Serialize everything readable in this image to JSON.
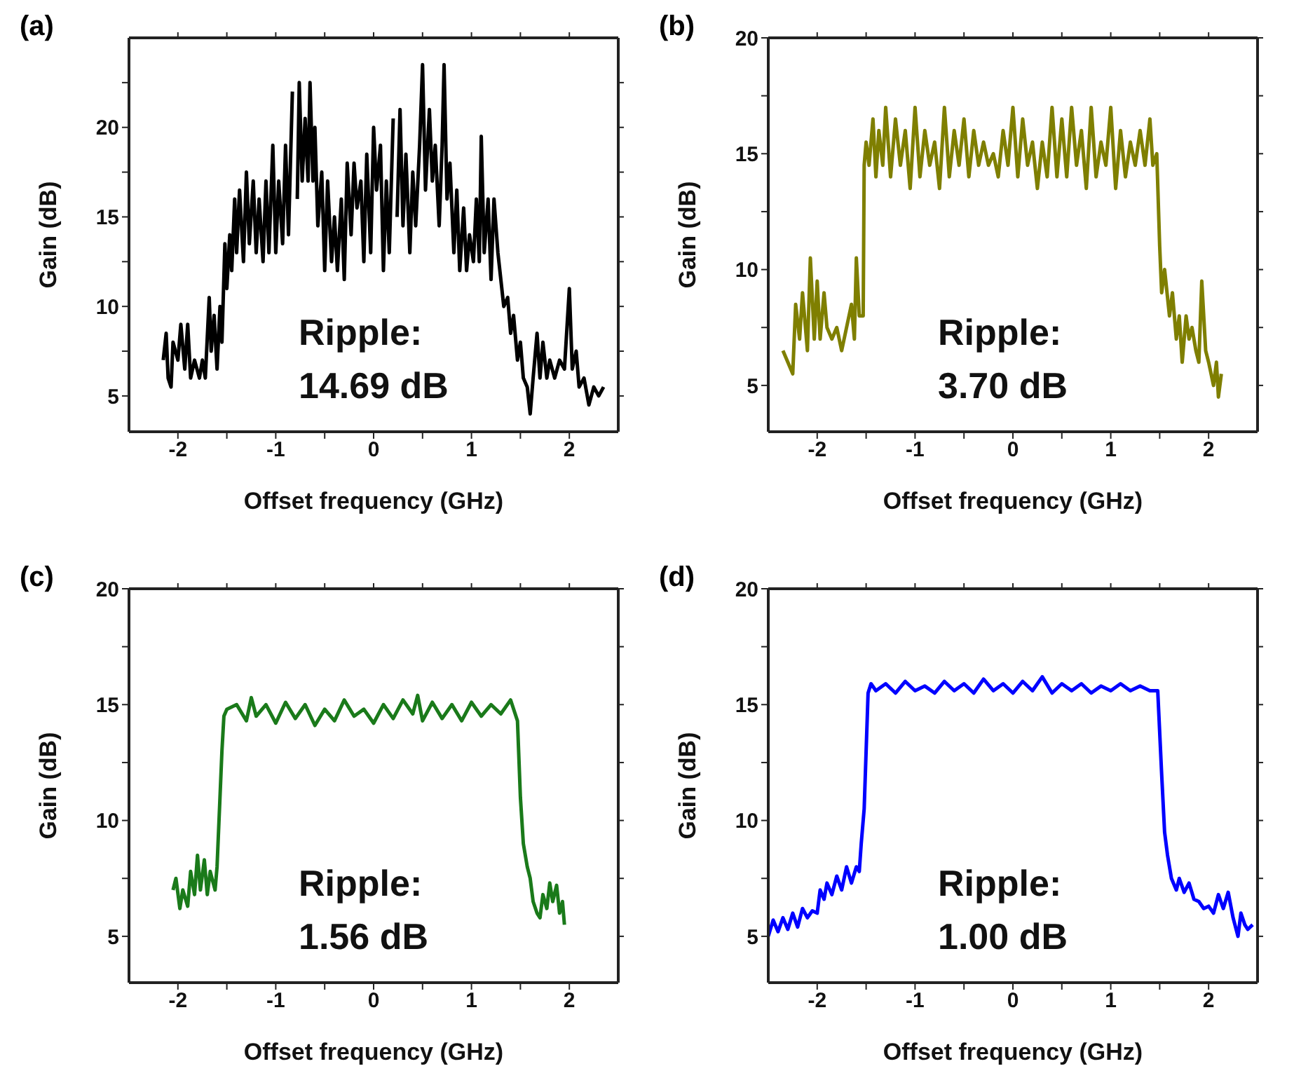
{
  "chart_data": [
    {
      "type": "line",
      "title": "(a)",
      "xlabel": "Offset frequency (GHz)",
      "ylabel": "Gain (dB)",
      "annotations": [
        "Ripple:",
        "14.69 dB"
      ],
      "color": "#000000",
      "xlim": [
        -2.5,
        2.5
      ],
      "ylim": [
        3,
        25
      ],
      "xticks": [
        -2,
        {
          "value": -1.5,
          "label": null
        },
        -1,
        {
          "value": -0.5,
          "label": null
        },
        0,
        {
          "value": 0.5,
          "label": null
        },
        1,
        {
          "value": 1.5,
          "label": null
        },
        2
      ],
      "yticks": [
        5,
        {
          "value": 7.5,
          "label": null
        },
        10,
        {
          "value": 12.5,
          "label": null
        },
        15,
        {
          "value": 17.5,
          "label": null
        },
        20,
        {
          "value": 22.5,
          "label": null
        }
      ],
      "x": [
        -2.15,
        -2.12,
        -2.1,
        -2.07,
        -2.05,
        -2.0,
        -1.97,
        -1.93,
        -1.9,
        -1.87,
        -1.83,
        -1.78,
        -1.75,
        -1.72,
        -1.68,
        -1.66,
        -1.63,
        -1.6,
        -1.57,
        -1.55,
        -1.52,
        -1.5,
        -1.47,
        -1.45,
        -1.42,
        -1.4,
        -1.37,
        -1.33,
        -1.3,
        -1.27,
        -1.23,
        -1.2,
        -1.17,
        -1.13,
        -1.1,
        -1.07,
        -1.03,
        -1.0,
        -0.97,
        -0.93,
        -0.9,
        -0.87,
        -0.83,
        -0.8,
        -0.78,
        -0.76,
        -0.73,
        -0.7,
        -0.67,
        -0.65,
        -0.62,
        -0.6,
        -0.57,
        -0.53,
        -0.5,
        -0.47,
        -0.43,
        -0.4,
        -0.37,
        -0.33,
        -0.3,
        -0.27,
        -0.23,
        -0.2,
        -0.17,
        -0.13,
        -0.1,
        -0.07,
        -0.03,
        0.0,
        0.03,
        0.07,
        0.1,
        0.13,
        0.16,
        0.2,
        0.22,
        0.24,
        0.27,
        0.3,
        0.33,
        0.37,
        0.4,
        0.43,
        0.47,
        0.5,
        0.53,
        0.57,
        0.6,
        0.63,
        0.67,
        0.7,
        0.72,
        0.75,
        0.78,
        0.82,
        0.85,
        0.88,
        0.92,
        0.95,
        0.98,
        1.02,
        1.05,
        1.08,
        1.1,
        1.13,
        1.17,
        1.2,
        1.23,
        1.27,
        1.3,
        1.33,
        1.37,
        1.4,
        1.43,
        1.47,
        1.5,
        1.53,
        1.57,
        1.6,
        1.63,
        1.67,
        1.7,
        1.73,
        1.77,
        1.8,
        1.85,
        1.9,
        1.95,
        2.0,
        2.03,
        2.07,
        2.1,
        2.15,
        2.2,
        2.25,
        2.3,
        2.35
      ],
      "values": [
        7,
        8.5,
        6,
        5.5,
        8,
        7,
        9,
        6.5,
        9,
        6,
        7,
        6,
        7,
        6,
        10.5,
        7.5,
        9.5,
        6.5,
        10,
        8,
        13.5,
        11,
        14,
        12,
        16,
        13,
        16.5,
        12.5,
        17.5,
        13.5,
        17,
        13,
        16,
        12.5,
        17,
        13,
        19,
        13,
        17,
        13.5,
        19,
        14,
        22,
        null,
        16,
        22.5,
        17,
        20.5,
        17,
        22.5,
        17,
        20,
        14.5,
        17.5,
        12,
        17,
        12.5,
        15,
        12,
        16,
        11.5,
        18,
        14,
        18,
        15.5,
        17,
        12.5,
        18.5,
        13,
        20,
        16.5,
        19,
        12,
        17,
        13,
        20.5,
        null,
        15,
        21,
        14.5,
        18.5,
        13,
        17.5,
        14.5,
        19,
        23.5,
        16.5,
        21,
        17,
        19,
        14.5,
        19,
        23.5,
        16,
        18,
        13,
        16.5,
        12,
        15.5,
        12,
        14,
        12.5,
        16,
        12.5,
        19.5,
        13,
        16,
        11.5,
        16,
        13,
        11.5,
        10,
        10.5,
        8.5,
        9.5,
        7,
        8,
        6,
        5.5,
        4,
        6,
        8.5,
        6,
        8,
        6,
        7,
        6,
        7,
        6.5,
        11,
        6.5,
        7.5,
        5.5,
        6,
        4.5,
        5.5,
        5,
        5.5
      ]
    },
    {
      "type": "line",
      "title": "(b)",
      "xlabel": "Offset frequency (GHz)",
      "ylabel": "Gain (dB)",
      "annotations": [
        "Ripple:",
        "3.70 dB"
      ],
      "color": "#7f7f00",
      "xlim": [
        -2.5,
        2.5
      ],
      "ylim": [
        3,
        20
      ],
      "xticks": [
        -2,
        {
          "value": -1.5,
          "label": null
        },
        -1,
        {
          "value": -0.5,
          "label": null
        },
        0,
        {
          "value": 0.5,
          "label": null
        },
        1,
        {
          "value": 1.5,
          "label": null
        },
        2
      ],
      "yticks": [
        5,
        {
          "value": 7.5,
          "label": null
        },
        10,
        {
          "value": 12.5,
          "label": null
        },
        15,
        {
          "value": 17.5,
          "label": null
        },
        20
      ],
      "x": [
        -2.35,
        -2.3,
        -2.25,
        -2.22,
        -2.18,
        -2.15,
        -2.1,
        -2.07,
        -2.03,
        -2.0,
        -1.97,
        -1.93,
        -1.9,
        -1.85,
        -1.8,
        -1.75,
        -1.7,
        -1.65,
        -1.62,
        -1.6,
        -1.57,
        -1.53,
        -1.52,
        -1.5,
        -1.47,
        -1.43,
        -1.4,
        -1.37,
        -1.33,
        -1.3,
        -1.25,
        -1.2,
        -1.15,
        -1.1,
        -1.05,
        -1.0,
        -0.95,
        -0.9,
        -0.85,
        -0.8,
        -0.75,
        -0.7,
        -0.65,
        -0.6,
        -0.55,
        -0.5,
        -0.45,
        -0.4,
        -0.35,
        -0.3,
        -0.25,
        -0.2,
        -0.15,
        -0.1,
        -0.05,
        0.0,
        0.05,
        0.1,
        0.15,
        0.2,
        0.25,
        0.3,
        0.35,
        0.4,
        0.45,
        0.5,
        0.55,
        0.6,
        0.65,
        0.7,
        0.75,
        0.8,
        0.85,
        0.9,
        0.95,
        1.0,
        1.05,
        1.1,
        1.15,
        1.2,
        1.25,
        1.3,
        1.35,
        1.4,
        1.43,
        1.47,
        1.5,
        1.52,
        1.55,
        1.6,
        1.63,
        1.67,
        1.7,
        1.73,
        1.77,
        1.8,
        1.83,
        1.87,
        1.9,
        1.93,
        1.97,
        2.0,
        2.05,
        2.08,
        2.1,
        2.13
      ],
      "values": [
        6.5,
        6,
        5.5,
        8.5,
        7,
        9,
        6.5,
        10.5,
        7,
        9.5,
        7,
        9,
        7.5,
        7,
        7.5,
        6.5,
        7.5,
        8.5,
        7,
        10.5,
        8,
        8,
        14.5,
        15.5,
        14.5,
        16.5,
        14,
        16,
        14.5,
        17,
        14,
        16.5,
        14.5,
        16,
        13.5,
        17,
        14,
        16,
        14.5,
        15.5,
        13.5,
        17,
        14,
        16,
        14.5,
        16.5,
        14,
        16,
        14.5,
        15.5,
        14.5,
        15,
        14,
        16,
        14.5,
        17,
        14,
        16.5,
        14.5,
        15.5,
        13.5,
        15.5,
        14,
        17,
        14,
        16.5,
        14,
        17,
        14.5,
        16,
        13.5,
        17,
        14,
        15.5,
        14.5,
        17,
        13.5,
        16,
        14,
        15.5,
        14.5,
        16,
        14.5,
        16.5,
        14.5,
        15,
        11,
        9,
        10,
        8,
        9,
        7,
        8,
        6,
        8,
        7,
        7.5,
        6.5,
        6,
        9.5,
        6.5,
        6,
        5,
        6,
        4.5,
        5.5
      ]
    },
    {
      "type": "line",
      "title": "(c)",
      "xlabel": "Offset frequency (GHz)",
      "ylabel": "Gain (dB)",
      "annotations": [
        "Ripple:",
        "1.56 dB"
      ],
      "color": "#1a7a1a",
      "xlim": [
        -2.5,
        2.5
      ],
      "ylim": [
        3,
        20
      ],
      "xticks": [
        -2,
        {
          "value": -1.5,
          "label": null
        },
        -1,
        {
          "value": -0.5,
          "label": null
        },
        0,
        {
          "value": 0.5,
          "label": null
        },
        1,
        {
          "value": 1.5,
          "label": null
        },
        2
      ],
      "yticks": [
        5,
        {
          "value": 7.5,
          "label": null
        },
        10,
        {
          "value": 12.5,
          "label": null
        },
        15,
        {
          "value": 17.5,
          "label": null
        },
        20
      ],
      "x": [
        -2.05,
        -2.02,
        -1.98,
        -1.95,
        -1.9,
        -1.87,
        -1.83,
        -1.8,
        -1.77,
        -1.73,
        -1.7,
        -1.67,
        -1.62,
        -1.6,
        -1.57,
        -1.55,
        -1.53,
        -1.5,
        -1.4,
        -1.3,
        -1.25,
        -1.2,
        -1.1,
        -1.0,
        -0.9,
        -0.8,
        -0.7,
        -0.6,
        -0.5,
        -0.4,
        -0.3,
        -0.2,
        -0.1,
        0.0,
        0.1,
        0.2,
        0.3,
        0.4,
        0.45,
        0.5,
        0.6,
        0.7,
        0.8,
        0.9,
        1.0,
        1.1,
        1.2,
        1.3,
        1.4,
        1.47,
        1.5,
        1.53,
        1.57,
        1.6,
        1.63,
        1.67,
        1.7,
        1.73,
        1.77,
        1.8,
        1.83,
        1.87,
        1.9,
        1.93,
        1.95
      ],
      "values": [
        7,
        7.5,
        6.2,
        7,
        6.3,
        7.8,
        6.8,
        8.5,
        7,
        8.3,
        6.8,
        7.8,
        7,
        8,
        11,
        13,
        14.5,
        14.8,
        15,
        14.3,
        15.3,
        14.5,
        15,
        14.2,
        15.1,
        14.4,
        15,
        14.1,
        14.8,
        14.3,
        15.2,
        14.5,
        14.8,
        14.2,
        15,
        14.4,
        15.2,
        14.6,
        15.4,
        14.3,
        15.1,
        14.4,
        15,
        14.3,
        15.1,
        14.5,
        15,
        14.6,
        15.2,
        14.3,
        11,
        9,
        8,
        7.5,
        6.5,
        6,
        5.8,
        6.8,
        6.2,
        7.3,
        6.5,
        7.2,
        6,
        6.5,
        5.5
      ]
    },
    {
      "type": "line",
      "title": "(d)",
      "xlabel": "Offset frequency (GHz)",
      "ylabel": "Gain (dB)",
      "annotations": [
        "Ripple:",
        "1.00 dB"
      ],
      "color": "#0000ff",
      "xlim": [
        -2.5,
        2.5
      ],
      "ylim": [
        3,
        20
      ],
      "xticks": [
        -2,
        {
          "value": -1.5,
          "label": null
        },
        -1,
        {
          "value": -0.5,
          "label": null
        },
        0,
        {
          "value": 0.5,
          "label": null
        },
        1,
        {
          "value": 1.5,
          "label": null
        },
        2
      ],
      "yticks": [
        5,
        {
          "value": 7.5,
          "label": null
        },
        10,
        {
          "value": 12.5,
          "label": null
        },
        15,
        {
          "value": 17.5,
          "label": null
        },
        20
      ],
      "x": [
        -2.5,
        -2.45,
        -2.4,
        -2.35,
        -2.3,
        -2.25,
        -2.2,
        -2.15,
        -2.1,
        -2.05,
        -2.0,
        -1.97,
        -1.93,
        -1.9,
        -1.85,
        -1.8,
        -1.75,
        -1.7,
        -1.65,
        -1.6,
        -1.57,
        -1.55,
        -1.52,
        -1.5,
        -1.48,
        -1.45,
        -1.4,
        -1.3,
        -1.2,
        -1.1,
        -1.0,
        -0.9,
        -0.8,
        -0.7,
        -0.6,
        -0.5,
        -0.4,
        -0.3,
        -0.2,
        -0.1,
        0.0,
        0.1,
        0.2,
        0.3,
        0.4,
        0.5,
        0.6,
        0.7,
        0.8,
        0.9,
        1.0,
        1.1,
        1.2,
        1.3,
        1.4,
        1.48,
        1.52,
        1.55,
        1.58,
        1.62,
        1.67,
        1.7,
        1.75,
        1.8,
        1.85,
        1.9,
        1.95,
        2.0,
        2.05,
        2.1,
        2.15,
        2.2,
        2.25,
        2.3,
        2.33,
        2.37,
        2.4,
        2.45
      ],
      "values": [
        5,
        5.7,
        5.2,
        5.8,
        5.3,
        6,
        5.4,
        6.2,
        5.8,
        6.1,
        6,
        7,
        6.6,
        7.3,
        6.8,
        7.6,
        7,
        8,
        7.3,
        8,
        7.8,
        9,
        10.5,
        13,
        15.5,
        15.9,
        15.6,
        15.9,
        15.5,
        16,
        15.6,
        15.8,
        15.5,
        16,
        15.6,
        15.9,
        15.5,
        16.1,
        15.6,
        15.9,
        15.5,
        16,
        15.6,
        16.2,
        15.5,
        15.9,
        15.6,
        15.9,
        15.5,
        15.8,
        15.6,
        15.9,
        15.6,
        15.8,
        15.6,
        15.6,
        12,
        9.5,
        8.5,
        7.5,
        7,
        7.5,
        6.9,
        7.3,
        6.6,
        6.5,
        6.2,
        6.3,
        6,
        6.8,
        6.2,
        6.9,
        5.8,
        5,
        6,
        5.5,
        5.3,
        5.5
      ]
    }
  ]
}
